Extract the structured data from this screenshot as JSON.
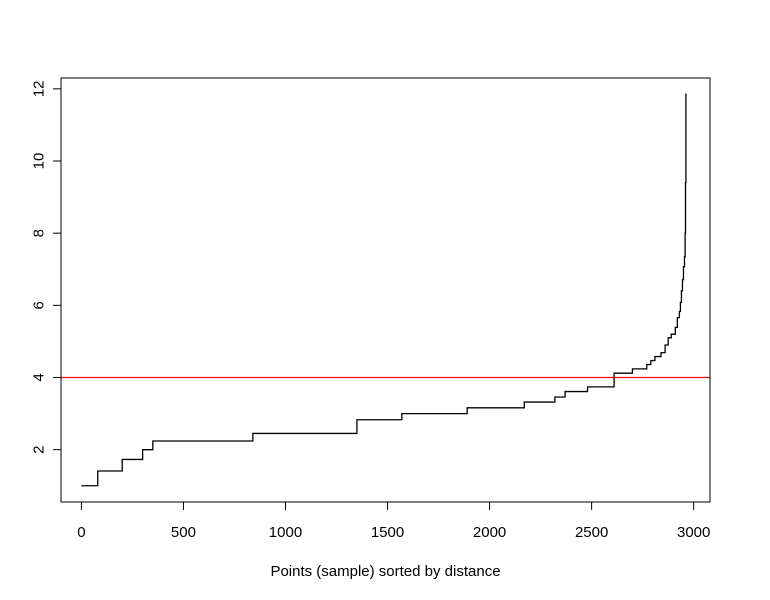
{
  "chart_data": {
    "type": "line",
    "xlabel": "Points (sample) sorted by distance",
    "ylabel": "",
    "xlim": [
      -100,
      3080
    ],
    "ylim": [
      0.55,
      12.3
    ],
    "x_ticks": [
      0,
      500,
      1000,
      1500,
      2000,
      2500,
      3000
    ],
    "y_ticks": [
      2,
      4,
      6,
      8,
      10,
      12
    ],
    "grid": false,
    "line_color": "#000000",
    "reference_line": {
      "y": 4,
      "color": "#ff0000"
    },
    "series": [
      {
        "step": true,
        "x": [
          0,
          80,
          80,
          200,
          200,
          300,
          300,
          350,
          350,
          840,
          840,
          1350,
          1350,
          1570,
          1570,
          1890,
          1890,
          2170,
          2170,
          2320,
          2320,
          2370,
          2370,
          2480,
          2480,
          2610,
          2610,
          2700,
          2700,
          2770,
          2770,
          2790,
          2790,
          2810,
          2810,
          2840,
          2840,
          2860,
          2860,
          2875,
          2875,
          2890,
          2890,
          2910,
          2910,
          2920,
          2920,
          2930,
          2930,
          2935,
          2935,
          2940,
          2940,
          2945,
          2945,
          2950,
          2950,
          2955,
          2955,
          2958,
          2958,
          2960,
          2960,
          2962,
          2962
        ],
        "y": [
          1.0,
          1.0,
          1.41,
          1.41,
          1.73,
          1.73,
          2.0,
          2.0,
          2.24,
          2.24,
          2.45,
          2.45,
          2.83,
          2.83,
          3.0,
          3.0,
          3.16,
          3.16,
          3.32,
          3.32,
          3.46,
          3.46,
          3.61,
          3.61,
          3.74,
          3.74,
          4.12,
          4.12,
          4.24,
          4.24,
          4.36,
          4.36,
          4.47,
          4.47,
          4.58,
          4.58,
          4.69,
          4.69,
          4.9,
          4.9,
          5.1,
          5.1,
          5.2,
          5.2,
          5.39,
          5.39,
          5.66,
          5.66,
          5.83,
          5.83,
          6.08,
          6.08,
          6.4,
          6.4,
          6.71,
          6.71,
          7.07,
          7.07,
          7.35,
          7.35,
          8.0,
          8.0,
          9.4,
          9.4,
          11.87
        ]
      }
    ]
  }
}
